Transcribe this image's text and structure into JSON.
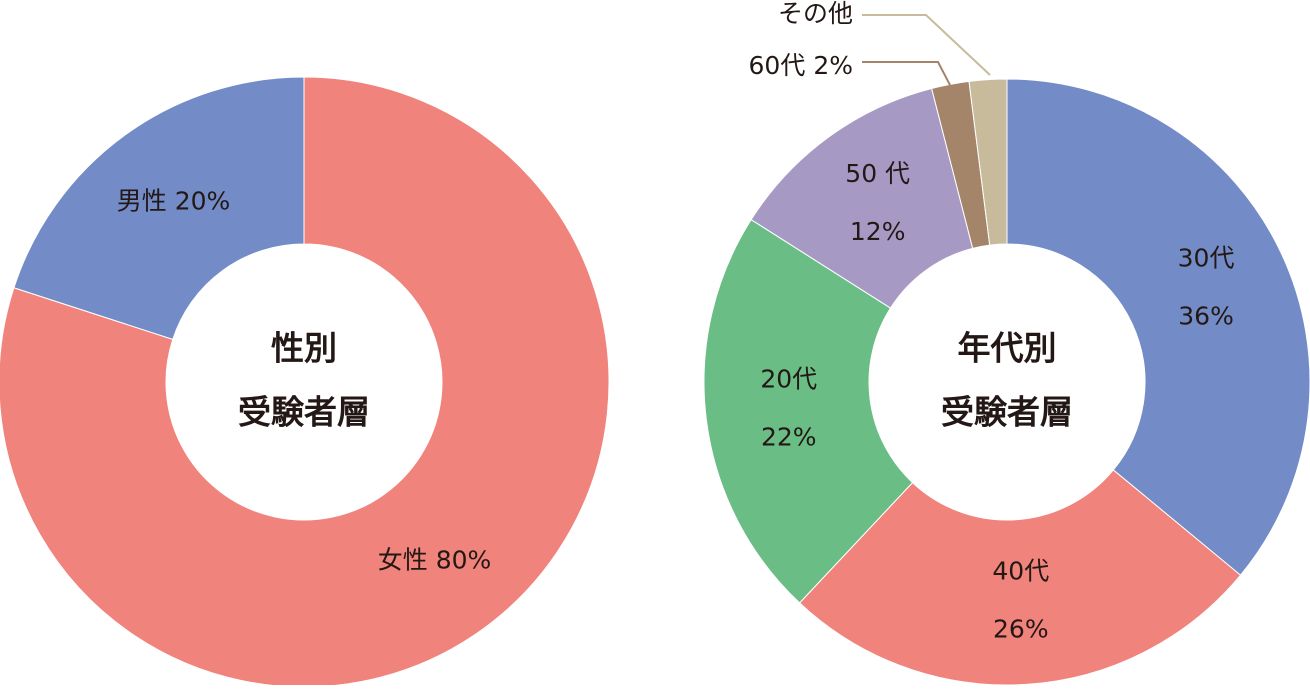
{
  "chart_data": [
    {
      "type": "donut",
      "center_title": [
        "性別",
        "受験者層"
      ],
      "categories": [
        "女性",
        "男性"
      ],
      "values": [
        80,
        20
      ],
      "value_labels": [
        "80%",
        "20%"
      ],
      "colors": [
        "#f0837b",
        "#738bc6"
      ]
    },
    {
      "type": "donut",
      "center_title": [
        "年代別",
        "受験者層"
      ],
      "categories": [
        "30代",
        "40代",
        "20代",
        "50 代",
        "60代",
        "その他"
      ],
      "values": [
        36,
        26,
        22,
        12,
        2,
        2
      ],
      "value_labels": [
        "36%",
        "26%",
        "22%",
        "12%",
        "2%",
        null
      ],
      "colors": [
        "#738bc6",
        "#f0837b",
        "#6abd84",
        "#a69ac4",
        "#a5856a",
        "#c8bb9b"
      ]
    }
  ]
}
